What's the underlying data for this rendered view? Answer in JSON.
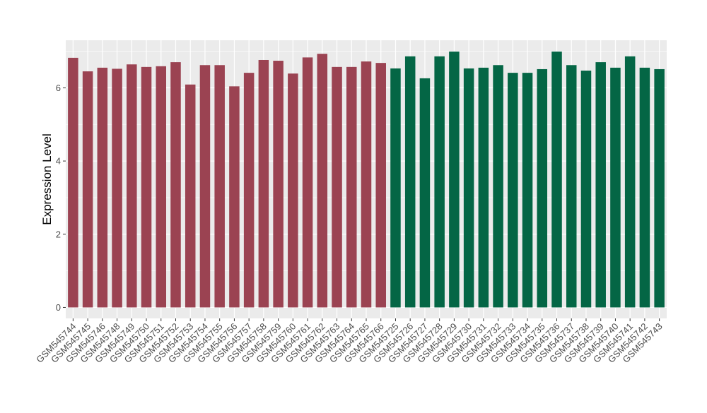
{
  "chart_data": {
    "type": "bar",
    "title": "",
    "xlabel": "",
    "ylabel": "Expression Level",
    "ylim": [
      -0.3,
      7.3
    ],
    "yticks": [
      0,
      2,
      4,
      6
    ],
    "grid": true,
    "legend": "none",
    "background_color": "#ebebeb",
    "grid_color": "#ffffff",
    "categories": [
      "GSM545744",
      "GSM545745",
      "GSM545746",
      "GSM545748",
      "GSM545749",
      "GSM545750",
      "GSM545751",
      "GSM545752",
      "GSM545753",
      "GSM545754",
      "GSM545755",
      "GSM545756",
      "GSM545757",
      "GSM545758",
      "GSM545759",
      "GSM545760",
      "GSM545761",
      "GSM545762",
      "GSM545763",
      "GSM545764",
      "GSM545765",
      "GSM545766",
      "GSM545725",
      "GSM545726",
      "GSM545727",
      "GSM545728",
      "GSM545729",
      "GSM545730",
      "GSM545731",
      "GSM545732",
      "GSM545733",
      "GSM545734",
      "GSM545735",
      "GSM545736",
      "GSM545737",
      "GSM545738",
      "GSM545739",
      "GSM545740",
      "GSM545741",
      "GSM545742",
      "GSM545743"
    ],
    "values": [
      6.82,
      6.45,
      6.55,
      6.52,
      6.64,
      6.57,
      6.59,
      6.7,
      6.09,
      6.62,
      6.62,
      6.04,
      6.41,
      6.76,
      6.74,
      6.39,
      6.83,
      6.93,
      6.57,
      6.57,
      6.72,
      6.68,
      6.53,
      6.86,
      6.26,
      6.86,
      6.99,
      6.53,
      6.55,
      6.62,
      6.41,
      6.41,
      6.51,
      6.99,
      6.62,
      6.47,
      6.7,
      6.55,
      6.86,
      6.55,
      6.51
    ],
    "bar_colors": [
      "#9b4352",
      "#9b4352",
      "#9b4352",
      "#9b4352",
      "#9b4352",
      "#9b4352",
      "#9b4352",
      "#9b4352",
      "#9b4352",
      "#9b4352",
      "#9b4352",
      "#9b4352",
      "#9b4352",
      "#9b4352",
      "#9b4352",
      "#9b4352",
      "#9b4352",
      "#9b4352",
      "#9b4352",
      "#9b4352",
      "#9b4352",
      "#9b4352",
      "#046645",
      "#046645",
      "#046645",
      "#046645",
      "#046645",
      "#046645",
      "#046645",
      "#046645",
      "#046645",
      "#046645",
      "#046645",
      "#046645",
      "#046645",
      "#046645",
      "#046645",
      "#046645",
      "#046645",
      "#046645",
      "#046645"
    ]
  }
}
